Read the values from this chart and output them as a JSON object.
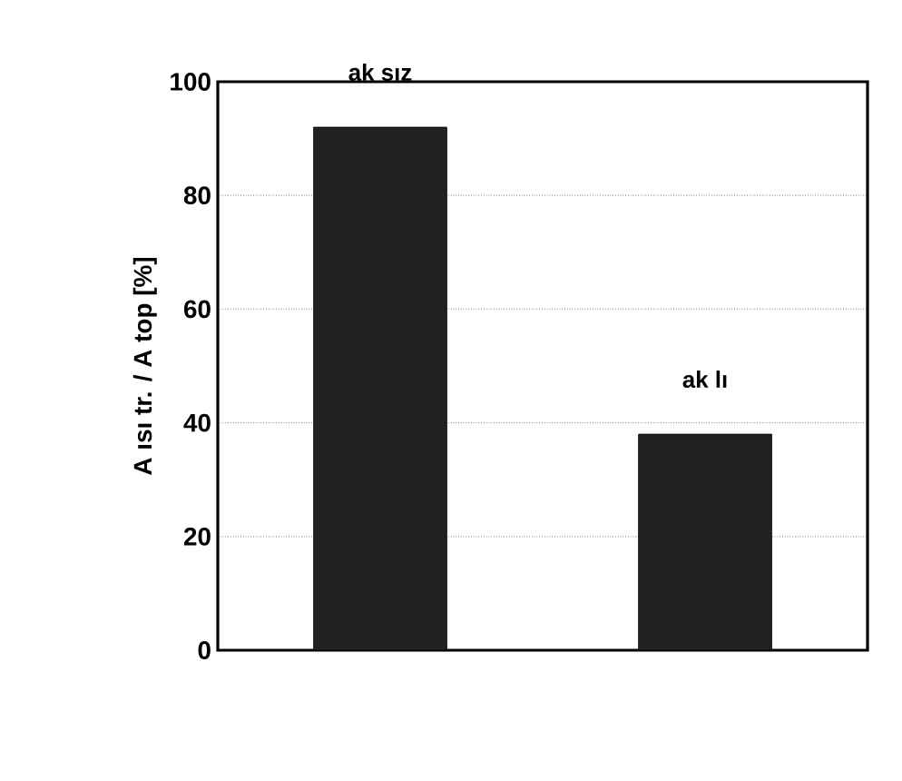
{
  "chart_data": {
    "type": "bar",
    "categories": [
      "ak sız",
      "ak lı"
    ],
    "values": [
      92,
      38
    ],
    "color": "#222222",
    "ylabel": "A ısı tr. / A top [%]",
    "ylim": [
      0,
      100
    ],
    "yticks": [
      0,
      20,
      40,
      60,
      80,
      100
    ],
    "grid": "y"
  }
}
